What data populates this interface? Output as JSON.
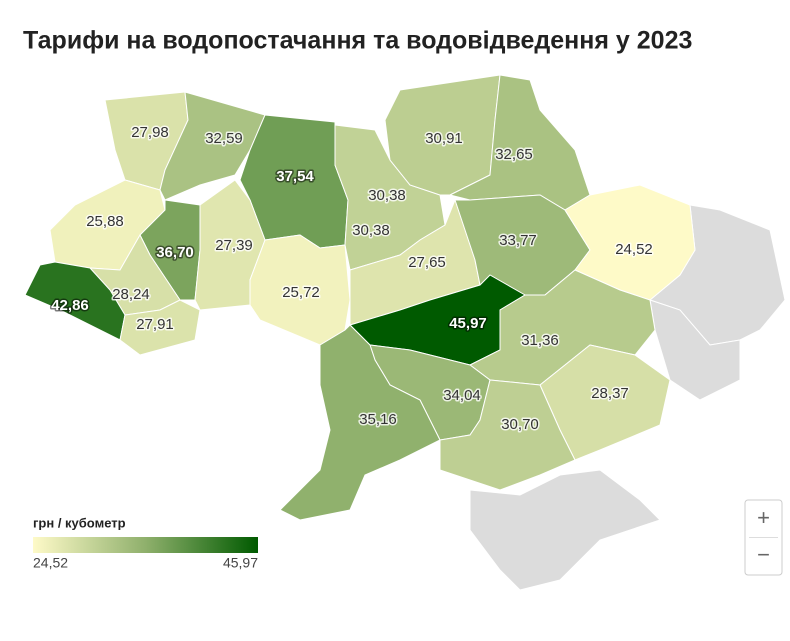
{
  "chart_data": {
    "type": "choropleth",
    "title": "Тарифи на водопостачання та водовідведення у 2023",
    "values": [
      27.98,
      32.59,
      37.54,
      30.38,
      30.38,
      30.91,
      32.65,
      25.88,
      36.7,
      27.39,
      28.24,
      42.86,
      27.91,
      25.72,
      27.65,
      33.77,
      24.52,
      45.97,
      31.36,
      28.37,
      34.04,
      35.16,
      30.7
    ],
    "value_labels": [
      "27,98",
      "32,59",
      "37,54",
      "30,38",
      "30,38",
      "30,91",
      "32,65",
      "25,88",
      "36,70",
      "27,39",
      "28,24",
      "42,86",
      "27,91",
      "25,72",
      "27,65",
      "33,77",
      "24,52",
      "45,97",
      "31,36",
      "28,37",
      "34,04",
      "35,16",
      "30,70"
    ],
    "color_stops": [
      "#fefac8",
      "#8fb06c",
      "#005a00"
    ],
    "no_data_color": "#dcdcdc",
    "legend": {
      "title": "грн / кубометр",
      "min": {
        "value": 24.52,
        "label": "24,52"
      },
      "max": {
        "value": 45.97,
        "label": "45,97"
      }
    },
    "controls": [
      "+",
      "−"
    ]
  }
}
